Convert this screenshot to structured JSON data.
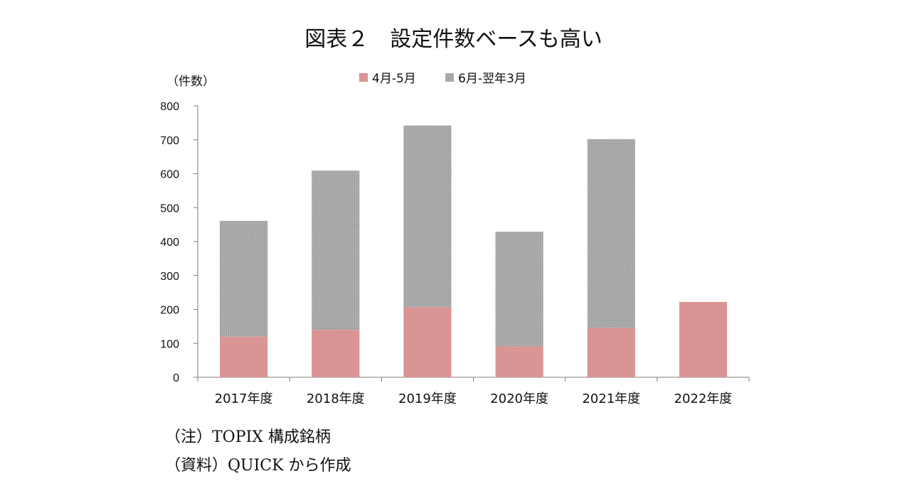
{
  "title": "図表２　設定件数ベースも高い",
  "notes": [
    "（注）TOPIX 構成銘柄",
    "（資料）QUICK から作成"
  ],
  "chart_data": {
    "type": "bar",
    "stacked": true,
    "unit_label": "（件数）",
    "categories": [
      "2017年度",
      "2018年度",
      "2019年度",
      "2020年度",
      "2021年度",
      "2022年度"
    ],
    "series": [
      {
        "name": "4月-5月",
        "color": "#d99594",
        "values": [
          120,
          140,
          207,
          91,
          146,
          222
        ]
      },
      {
        "name": "6月-翌年3月",
        "color": "#a6a6a6",
        "pattern": "dotted",
        "values": [
          341,
          469,
          535,
          338,
          556,
          0
        ]
      }
    ],
    "ylim": [
      0,
      800
    ],
    "yticks": [
      "0",
      "100",
      "200",
      "300",
      "400",
      "500",
      "600",
      "700",
      "800"
    ],
    "legend_position": "top",
    "grid": false
  }
}
